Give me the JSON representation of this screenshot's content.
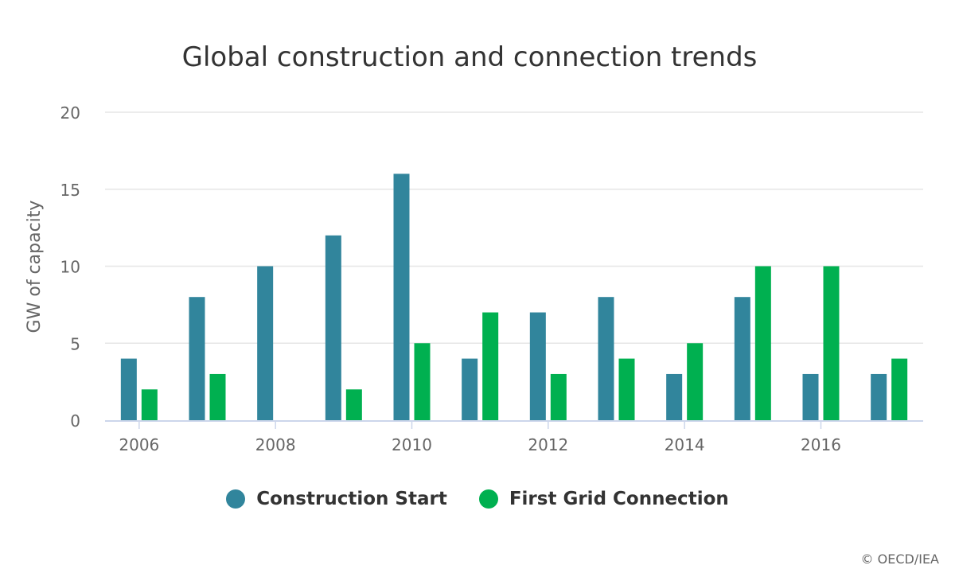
{
  "chart_data": {
    "type": "bar",
    "title": "Global construction and connection trends",
    "xlabel": "",
    "ylabel": "GW of capacity",
    "categories": [
      "2006",
      "2007",
      "2008",
      "2009",
      "2010",
      "2011",
      "2012",
      "2013",
      "2014",
      "2015",
      "2016",
      "2017"
    ],
    "x_tick_labels": [
      "2006",
      "2008",
      "2010",
      "2012",
      "2014",
      "2016"
    ],
    "y_ticks": [
      0,
      5,
      10,
      15,
      20
    ],
    "ylim": [
      0,
      20
    ],
    "grid": true,
    "legend_position": "bottom",
    "series": [
      {
        "name": "Construction Start",
        "color": "#31859c",
        "values": [
          4,
          8,
          10,
          12,
          16,
          4,
          7,
          8,
          3,
          8,
          3,
          3
        ]
      },
      {
        "name": "First Grid Connection",
        "color": "#00b050",
        "values": [
          2,
          3,
          0,
          2,
          5,
          7,
          3,
          4,
          5,
          10,
          10,
          4
        ]
      }
    ]
  },
  "copyright": "© OECD/IEA"
}
